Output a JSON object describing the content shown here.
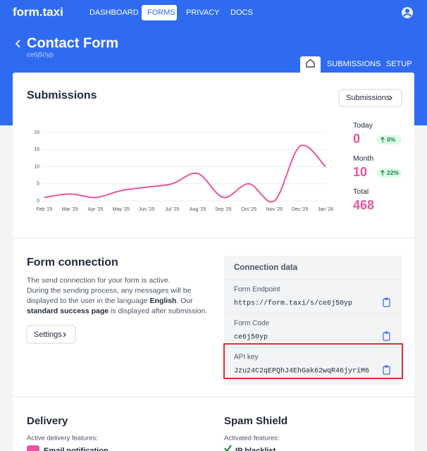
{
  "nav": {
    "logo": "form.taxi",
    "items": [
      "DASHBOARD",
      "FORMS",
      "PRIVACY",
      "DOCS"
    ],
    "active": 1
  },
  "header": {
    "title": "Contact Form",
    "subtitle": "ce6j50yp",
    "tabs": [
      "SUBMISSIONS",
      "SETUP"
    ]
  },
  "submissions": {
    "title": "Submissions",
    "button": "Submissions",
    "stats": [
      {
        "label": "Today",
        "value": 0,
        "change": "0%"
      },
      {
        "label": "Month",
        "value": 10,
        "change": "22%"
      },
      {
        "label": "Total",
        "value": 468
      }
    ]
  },
  "chart_data": {
    "type": "line",
    "categories": [
      "Feb '25",
      "Mar '25",
      "Apr '25",
      "May '25",
      "Jun '25",
      "Jul '25",
      "Aug '25",
      "Sep '25",
      "Oct '25",
      "Nov '25",
      "Dec '25",
      "Jan '26"
    ],
    "values": [
      1,
      2,
      1,
      3,
      4,
      5,
      8,
      1,
      5,
      0,
      16,
      10
    ],
    "color": "#e8559e",
    "ylim": [
      0,
      20
    ],
    "yticks": [
      0,
      5,
      10,
      15,
      20
    ],
    "grid": true
  },
  "form_connection": {
    "title": "Form connection",
    "lines": [
      [
        {
          "text": "The send connection for your form is active.",
          "bold": false
        }
      ],
      [
        {
          "text": "During the sending process, any messages will be",
          "bold": false
        }
      ],
      [
        {
          "text": "displayed to the user in the language ",
          "bold": false
        },
        {
          "text": "English",
          "bold": true
        },
        {
          "text": ". Our",
          "bold": false
        }
      ],
      [
        {
          "text": "standard success page",
          "bold": true
        },
        {
          "text": " is displayed after submission.",
          "bold": false
        }
      ]
    ],
    "button": "Settings"
  },
  "connection_data": {
    "title": "Connection data",
    "highlighted": 2,
    "rows": [
      {
        "label": "Form Endpoint",
        "value": "https://form.taxi/s/ce6j50yp"
      },
      {
        "label": "Form Code",
        "value": "ce6j50yp"
      },
      {
        "label": "API key",
        "value": "Jzu24C2qEPQhJ4EhGak62wqR46jyriM6"
      }
    ]
  },
  "delivery": {
    "title": "Delivery",
    "subtitle": "Active delivery features:",
    "features": [
      "Email notification"
    ]
  },
  "spam_shield": {
    "title": "Spam Shield",
    "subtitle": "Activated features:",
    "features": [
      "IP blacklist"
    ]
  }
}
